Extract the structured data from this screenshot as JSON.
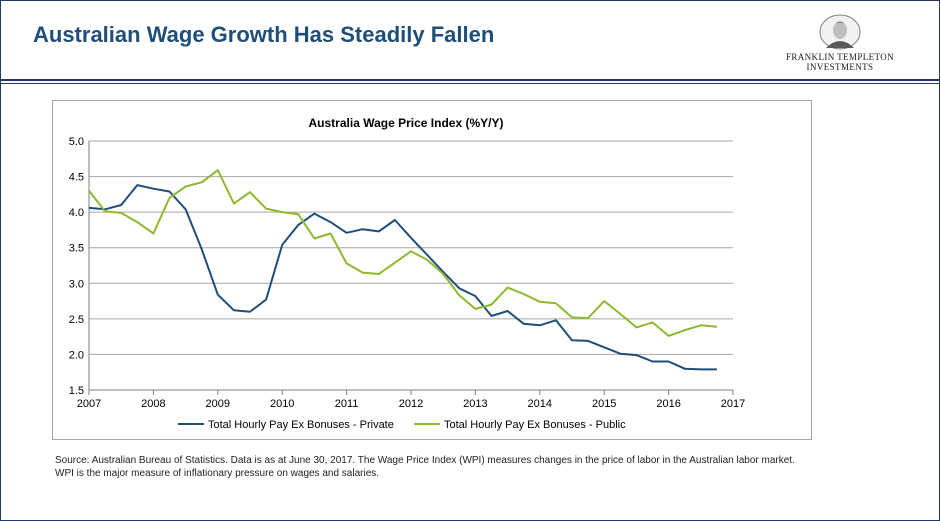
{
  "slide": {
    "title": "Australian Wage Growth Has Steadily Fallen",
    "logo_line1": "FRANKLIN TEMPLETON",
    "logo_line2": "INVESTMENTS",
    "source_text": "Source: Australian Bureau of Statistics. Data is as at June 30, 2017. The Wage Price Index (WPI) measures changes in the price of labor in the Australian labor market. WPI is the major measure of inflationary pressure on wages and salaries."
  },
  "colors": {
    "title": "#1f4e79",
    "rule": "#1f3864",
    "private": "#1f4e79",
    "public": "#8db92e",
    "grid": "#a6a6a6"
  },
  "chart_data": {
    "type": "line",
    "title": "Australia Wage Price Index (%Y/Y)",
    "xlabel": "",
    "ylabel": "",
    "xlim": [
      2007,
      2017
    ],
    "ylim": [
      1.5,
      5.0
    ],
    "xticks": [
      "2007",
      "2008",
      "2009",
      "2010",
      "2011",
      "2012",
      "2013",
      "2014",
      "2015",
      "2016",
      "2017"
    ],
    "yticks": [
      "1.5",
      "2.0",
      "2.5",
      "3.0",
      "3.5",
      "4.0",
      "4.5",
      "5.0"
    ],
    "grid": "horizontal",
    "legend_position": "bottom",
    "series": [
      {
        "name": "Total Hourly Pay Ex Bonuses - Private",
        "x": [
          2007.0,
          2007.25,
          2007.5,
          2007.75,
          2008.0,
          2008.25,
          2008.5,
          2008.75,
          2009.0,
          2009.25,
          2009.5,
          2009.75,
          2010.0,
          2010.25,
          2010.5,
          2010.75,
          2011.0,
          2011.25,
          2011.5,
          2011.75,
          2012.0,
          2012.25,
          2012.5,
          2012.75,
          2013.0,
          2013.25,
          2013.5,
          2013.75,
          2014.0,
          2014.25,
          2014.5,
          2014.75,
          2015.0,
          2015.25,
          2015.5,
          2015.75,
          2016.0,
          2016.25,
          2016.5,
          2016.75
        ],
        "values": [
          4.06,
          4.04,
          4.1,
          4.38,
          4.33,
          4.29,
          4.04,
          3.48,
          2.84,
          2.62,
          2.6,
          2.77,
          3.54,
          3.82,
          3.98,
          3.86,
          3.71,
          3.76,
          3.73,
          3.89,
          3.64,
          3.4,
          3.16,
          2.93,
          2.82,
          2.54,
          2.61,
          2.43,
          2.41,
          2.48,
          2.2,
          2.19,
          2.1,
          2.01,
          1.99,
          1.9,
          1.9,
          1.8,
          1.79,
          1.79
        ]
      },
      {
        "name": "Total Hourly Pay Ex Bonuses - Public",
        "x": [
          2007.0,
          2007.25,
          2007.5,
          2007.75,
          2008.0,
          2008.25,
          2008.5,
          2008.75,
          2009.0,
          2009.25,
          2009.5,
          2009.75,
          2010.0,
          2010.25,
          2010.5,
          2010.75,
          2011.0,
          2011.25,
          2011.5,
          2011.75,
          2012.0,
          2012.25,
          2012.5,
          2012.75,
          2013.0,
          2013.25,
          2013.5,
          2013.75,
          2014.0,
          2014.25,
          2014.5,
          2014.75,
          2015.0,
          2015.25,
          2015.5,
          2015.75,
          2016.0,
          2016.25,
          2016.5,
          2016.75
        ],
        "values": [
          4.3,
          4.01,
          3.99,
          3.86,
          3.7,
          4.2,
          4.36,
          4.42,
          4.59,
          4.12,
          4.28,
          4.05,
          4.0,
          3.97,
          3.63,
          3.7,
          3.28,
          3.15,
          3.13,
          3.29,
          3.45,
          3.33,
          3.13,
          2.83,
          2.64,
          2.7,
          2.94,
          2.85,
          2.74,
          2.72,
          2.52,
          2.51,
          2.75,
          2.57,
          2.38,
          2.45,
          2.26,
          2.34,
          2.41,
          2.39
        ]
      }
    ]
  }
}
